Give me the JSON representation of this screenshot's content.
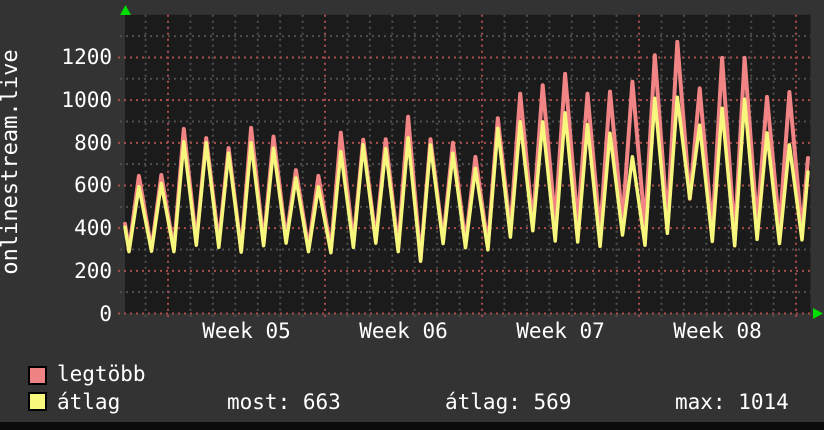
{
  "title": "onlinestream.live",
  "legend": {
    "items": [
      {
        "label": "legtöbb",
        "color": "#ef8282"
      },
      {
        "label": "átlag",
        "color": "#f7f87c"
      }
    ]
  },
  "stats": {
    "most": "most: 663",
    "atlag": "átlag: 569",
    "max": "max: 1014"
  },
  "chart_data": {
    "type": "line",
    "title": "onlinestream.live",
    "ylabel": "onlinestream.live",
    "grid": "on",
    "legend_position": "bottom-left",
    "ylim": [
      0,
      1400
    ],
    "yticks": [
      0,
      200,
      400,
      600,
      800,
      1000,
      1200
    ],
    "y_minor_step": 100,
    "y_major_step": 200,
    "x_days_span": 30.56,
    "day_gridline_offset": 0.917,
    "week_gridlines_day": [
      1.917,
      8.917,
      15.917,
      22.917,
      29.917
    ],
    "week_labels": [
      {
        "label": "Week 05",
        "day": 5.417
      },
      {
        "label": "Week 06",
        "day": 12.417
      },
      {
        "label": "Week 07",
        "day": 19.417
      },
      {
        "label": "Week 08",
        "day": 26.417
      }
    ],
    "trough_time_of_day": 0.18,
    "peak_time_of_day": 0.62,
    "end_trough_day": 30.18,
    "end_day": 30.45,
    "series": [
      {
        "name": "legtöbb",
        "color": "#f18484",
        "width": 4,
        "start": 420,
        "daily_min_max": [
          [
            298,
            645
          ],
          [
            300,
            649
          ],
          [
            300,
            865
          ],
          [
            335,
            822
          ],
          [
            330,
            775
          ],
          [
            295,
            870
          ],
          [
            330,
            829
          ],
          [
            348,
            672
          ],
          [
            305,
            645
          ],
          [
            298,
            847
          ],
          [
            330,
            814
          ],
          [
            348,
            817
          ],
          [
            308,
            922
          ],
          [
            252,
            817
          ],
          [
            345,
            800
          ],
          [
            328,
            734
          ],
          [
            318,
            915
          ],
          [
            388,
            1030
          ],
          [
            418,
            1070
          ],
          [
            428,
            1123
          ],
          [
            418,
            1030
          ],
          [
            378,
            1040
          ],
          [
            428,
            1086
          ],
          [
            405,
            1210
          ],
          [
            428,
            1273
          ],
          [
            538,
            1055
          ],
          [
            388,
            1198
          ],
          [
            358,
            1198
          ],
          [
            418,
            1015
          ],
          [
            398,
            1038
          ]
        ],
        "end_trough": 383,
        "end": 729
      },
      {
        "name": "átlag",
        "color": "#f6f77c",
        "width": 3.5,
        "start": 405,
        "daily_min_max": [
          [
            290,
            595
          ],
          [
            292,
            610
          ],
          [
            290,
            805
          ],
          [
            320,
            800
          ],
          [
            310,
            752
          ],
          [
            288,
            800
          ],
          [
            318,
            775
          ],
          [
            330,
            635
          ],
          [
            290,
            594
          ],
          [
            285,
            759
          ],
          [
            310,
            791
          ],
          [
            330,
            772
          ],
          [
            290,
            823
          ],
          [
            245,
            790
          ],
          [
            328,
            751
          ],
          [
            308,
            680
          ],
          [
            298,
            868
          ],
          [
            358,
            899
          ],
          [
            388,
            898
          ],
          [
            340,
            940
          ],
          [
            335,
            885
          ],
          [
            315,
            845
          ],
          [
            368,
            735
          ],
          [
            320,
            1009
          ],
          [
            376,
            1014
          ],
          [
            538,
            883
          ],
          [
            338,
            962
          ],
          [
            318,
            1005
          ],
          [
            348,
            846
          ],
          [
            328,
            790
          ]
        ],
        "end_trough": 345,
        "end": 663
      }
    ],
    "colors": {
      "plot_background": "#1b1b1b",
      "outer_background": "#333333",
      "major_grid": "#ab4d4d",
      "minor_grid": "#4f4f4f",
      "axis_arrow": "#00dd00",
      "text": "#ffffff"
    }
  }
}
